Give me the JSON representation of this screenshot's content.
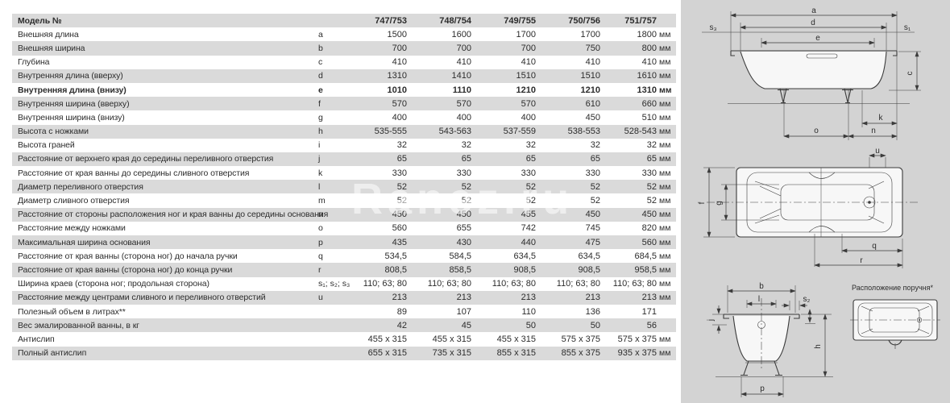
{
  "table": {
    "header": {
      "label": "Модель №",
      "models": [
        "747/753",
        "748/754",
        "749/755",
        "750/756",
        "751/757"
      ]
    },
    "rows": [
      {
        "label": "Внешняя длина",
        "letter": "a",
        "values": [
          "1500",
          "1600",
          "1700",
          "1700",
          "1800"
        ],
        "unit": "мм",
        "bold": false
      },
      {
        "label": "Внешняя ширина",
        "letter": "b",
        "values": [
          "700",
          "700",
          "700",
          "750",
          "800"
        ],
        "unit": "мм",
        "bold": false
      },
      {
        "label": "Глубина",
        "letter": "c",
        "values": [
          "410",
          "410",
          "410",
          "410",
          "410"
        ],
        "unit": "мм",
        "bold": false
      },
      {
        "label": "Внутренняя длина (вверху)",
        "letter": "d",
        "values": [
          "1310",
          "1410",
          "1510",
          "1510",
          "1610"
        ],
        "unit": "мм",
        "bold": false
      },
      {
        "label": "Внутренняя длина (внизу)",
        "letter": "e",
        "values": [
          "1010",
          "1110",
          "1210",
          "1210",
          "1310"
        ],
        "unit": "мм",
        "bold": true
      },
      {
        "label": "Внутренняя ширина (вверху)",
        "letter": "f",
        "values": [
          "570",
          "570",
          "570",
          "610",
          "660"
        ],
        "unit": "мм",
        "bold": false
      },
      {
        "label": "Внутренняя ширина (внизу)",
        "letter": "g",
        "values": [
          "400",
          "400",
          "400",
          "450",
          "510"
        ],
        "unit": "мм",
        "bold": false
      },
      {
        "label": "Высота с ножками",
        "letter": "h",
        "values": [
          "535-555",
          "543-563",
          "537-559",
          "538-553",
          "528-543"
        ],
        "unit": "мм",
        "bold": false
      },
      {
        "label": "Высота граней",
        "letter": "i",
        "values": [
          "32",
          "32",
          "32",
          "32",
          "32"
        ],
        "unit": "мм",
        "bold": false
      },
      {
        "label": "Расстояние от верхнего края до середины переливного отверстия",
        "letter": "j",
        "values": [
          "65",
          "65",
          "65",
          "65",
          "65"
        ],
        "unit": "мм",
        "bold": false
      },
      {
        "label": "Расстояние от края ванны до середины сливного отверстия",
        "letter": "k",
        "values": [
          "330",
          "330",
          "330",
          "330",
          "330"
        ],
        "unit": "мм",
        "bold": false
      },
      {
        "label": "Диаметр переливного отверстия",
        "letter": "l",
        "values": [
          "52",
          "52",
          "52",
          "52",
          "52"
        ],
        "unit": "мм",
        "bold": false
      },
      {
        "label": "Диаметр сливного отверстия",
        "letter": "m",
        "values": [
          "52",
          "52",
          "52",
          "52",
          "52"
        ],
        "unit": "мм",
        "bold": false
      },
      {
        "label": "Расстояние от стороны расположения ног и края ванны до середины основания",
        "letter": "n",
        "values": [
          "450",
          "450",
          "455",
          "450",
          "450"
        ],
        "unit": "мм",
        "bold": false
      },
      {
        "label": "Расстояние между ножками",
        "letter": "o",
        "values": [
          "560",
          "655",
          "742",
          "745",
          "820"
        ],
        "unit": "мм",
        "bold": false
      },
      {
        "label": "Максимальная ширина основания",
        "letter": "p",
        "values": [
          "435",
          "430",
          "440",
          "475",
          "560"
        ],
        "unit": "мм",
        "bold": false
      },
      {
        "label": "Расстояние от края ванны (сторона ног) до начала ручки",
        "letter": "q",
        "values": [
          "534,5",
          "584,5",
          "634,5",
          "634,5",
          "684,5"
        ],
        "unit": "мм",
        "bold": false
      },
      {
        "label": "Расстояние от края ванны (сторона ног) до конца ручки",
        "letter": "r",
        "values": [
          "808,5",
          "858,5",
          "908,5",
          "908,5",
          "958,5"
        ],
        "unit": "мм",
        "bold": false
      },
      {
        "label": "Ширина краев (сторона ног; продольная сторона)",
        "letter": "s₁; s₂; s₃",
        "values": [
          "110; 63; 80",
          "110; 63; 80",
          "110; 63; 80",
          "110; 63; 80",
          "110; 63; 80"
        ],
        "unit": "мм",
        "bold": false
      },
      {
        "label": "Расстояние между центрами сливного и переливного отверстий",
        "letter": "u",
        "values": [
          "213",
          "213",
          "213",
          "213",
          "213"
        ],
        "unit": "мм",
        "bold": false
      },
      {
        "label": "Полезный объем в литрах**",
        "letter": "",
        "values": [
          "89",
          "107",
          "110",
          "136",
          "171"
        ],
        "unit": "",
        "bold": false
      },
      {
        "label": "Вес эмалированной ванны, в кг",
        "letter": "",
        "values": [
          "42",
          "45",
          "50",
          "50",
          "56"
        ],
        "unit": "",
        "bold": false
      },
      {
        "label": "Антислип",
        "letter": "",
        "values": [
          "455 x 315",
          "455 x 315",
          "455 x 315",
          "575 x 375",
          "575 x 375"
        ],
        "unit": "мм",
        "bold": false
      },
      {
        "label": "Полный антислип",
        "letter": "",
        "values": [
          "655 x 315",
          "735 x 315",
          "855 x 315",
          "855 x 375",
          "935 x 375"
        ],
        "unit": "мм",
        "bold": false
      }
    ]
  },
  "diagrams": {
    "side": {
      "a": "a",
      "d": "d",
      "e": "e",
      "s3": "s₃",
      "s1": "s₁",
      "c": "c",
      "k": "k",
      "o": "o",
      "n": "n"
    },
    "top": {
      "u": "u",
      "f": "f",
      "g": "g",
      "q": "q",
      "r": "r"
    },
    "end": {
      "b": "b",
      "l": "l",
      "s2": "s₂",
      "j": "j",
      "h": "h",
      "p": "p"
    },
    "handle_caption": "Расположение поручня*"
  },
  "watermark": "Ranez.ru",
  "colors": {
    "row_gray": "#dadada",
    "panel_bg": "#d3d3d3",
    "text": "#2c2c2c"
  }
}
